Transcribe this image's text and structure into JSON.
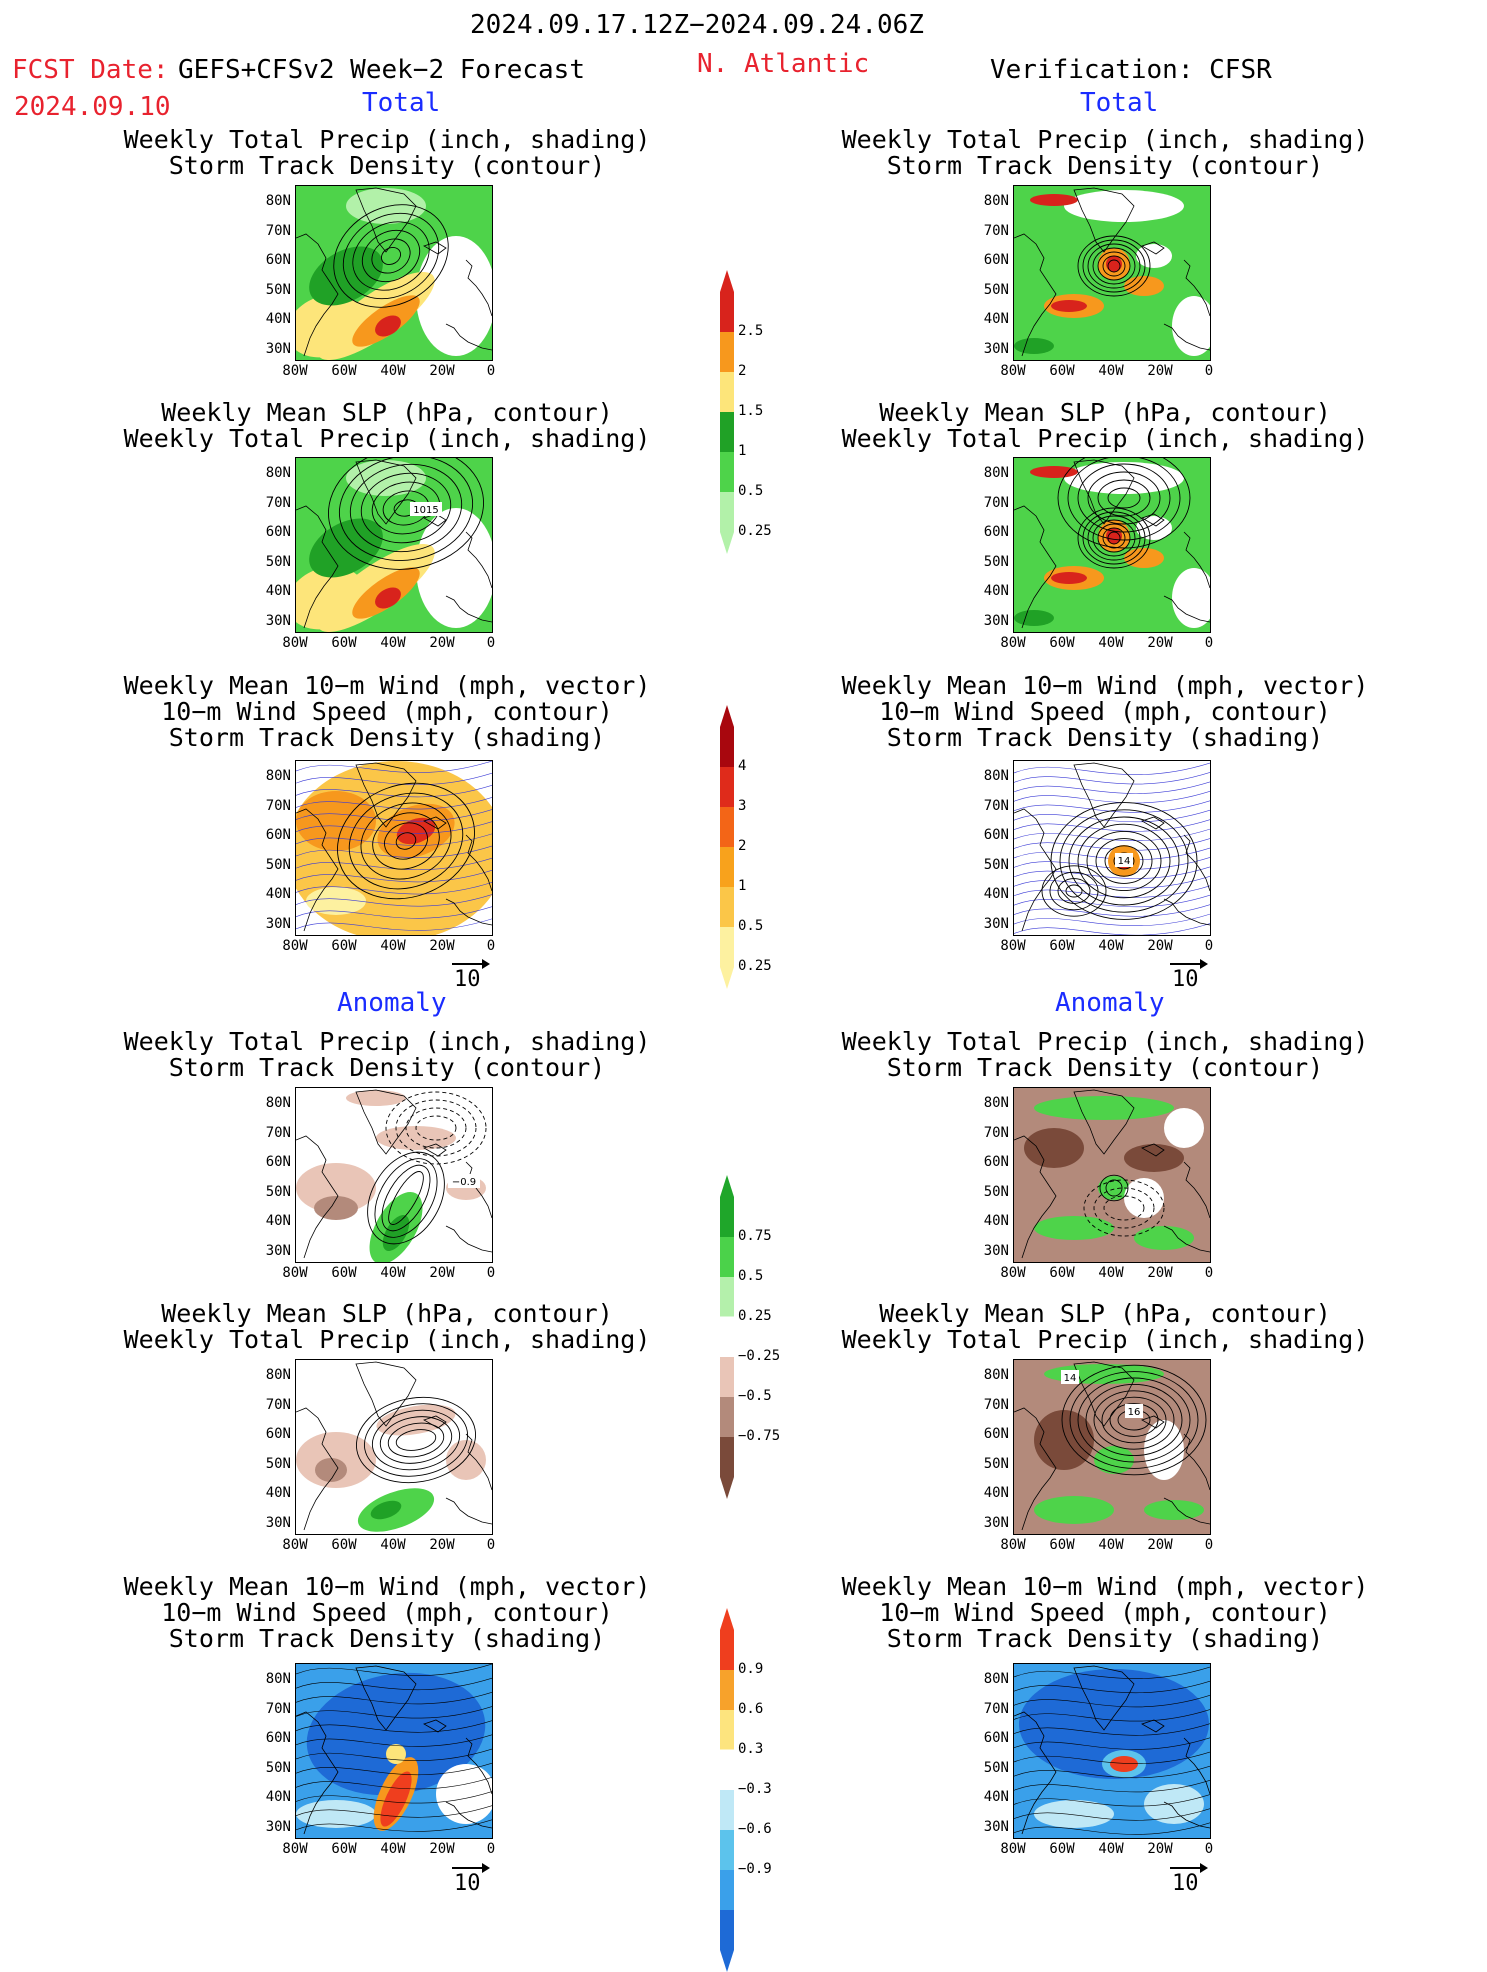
{
  "header": {
    "date_range": "2024.09.17.12Z−2024.09.24.06Z",
    "fcst_label": "FCST Date:",
    "fcst_model": "GEFS+CFSv2 Week−2 Forecast",
    "fcst_date": "2024.09.10",
    "region": "N. Atlantic",
    "verification": "Verification: CFSR"
  },
  "sections": {
    "total": "Total",
    "anomaly": "Anomaly"
  },
  "titles": {
    "precip_storm": "Weekly Total Precip (inch, shading)\nStorm Track Density (contour)",
    "slp_precip": "Weekly Mean SLP (hPa, contour)\nWeekly Total Precip (inch, shading)",
    "wind_storm": "Weekly Mean 10−m Wind (mph, vector)\n10−m Wind Speed (mph, contour)\nStorm Track Density (shading)"
  },
  "axes": {
    "lat_ticks": [
      "80N",
      "70N",
      "60N",
      "50N",
      "40N",
      "30N"
    ],
    "lon_ticks": [
      "80W",
      "60W",
      "40W",
      "20W",
      "0"
    ]
  },
  "vector_ref": "10",
  "contour_labels": {
    "fc_slp_total": "1015",
    "obs_wind_total": "14",
    "fc_precip_anom": "−0.9",
    "obs_slp_anom_a": "14",
    "obs_slp_anom_b": "16"
  },
  "colorbars": {
    "precip_total": {
      "labels": [
        "2.5",
        "2",
        "1.5",
        "1",
        "0.5",
        "0.25"
      ],
      "colors": [
        "#d8231c",
        "#f7981d",
        "#fde57a",
        "#20a126",
        "#4ed34a",
        "#b2f1a9"
      ]
    },
    "storm_total": {
      "labels": [
        "4",
        "3",
        "2",
        "1",
        "0.5",
        "0.25"
      ],
      "colors": [
        "#a8070e",
        "#df2b1b",
        "#f36517",
        "#f8a21c",
        "#fbc648",
        "#fdf1a0"
      ]
    },
    "precip_anom": {
      "labels": [
        "0.75",
        "0.5",
        "0.25",
        "−0.25",
        "−0.5",
        "−0.75"
      ],
      "colors": [
        "#1fa62a",
        "#4bd24a",
        "#b4f0ab",
        "#ffffff",
        "#e9c5b7",
        "#b38a7b",
        "#7a4a3a"
      ]
    },
    "storm_anom": {
      "labels": [
        "0.9",
        "0.6",
        "0.3",
        "−0.3",
        "−0.6",
        "−0.9"
      ],
      "colors": [
        "#ef3e1e",
        "#f7a22b",
        "#fde47e",
        "#ffffff",
        "#bfe8f6",
        "#5cc3ec",
        "#3aa0ea",
        "#1e6ad6"
      ]
    }
  }
}
